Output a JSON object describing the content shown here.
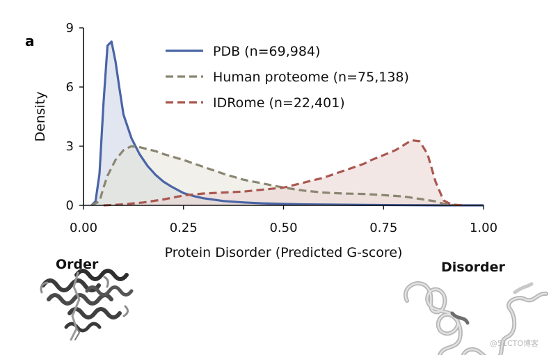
{
  "panel_label": "a",
  "structure_labels": {
    "order": "Order",
    "disorder": "Disorder"
  },
  "watermark": "@51CTO博客",
  "chart_data": {
    "type": "area",
    "title": "",
    "xlabel": "Protein Disorder (Predicted G-score)",
    "ylabel": "Density",
    "xlim": [
      0.0,
      1.0
    ],
    "ylim": [
      0,
      9
    ],
    "x_ticks": [
      0.0,
      0.25,
      0.5,
      0.75,
      1.0
    ],
    "x_tick_labels": [
      "0.00",
      "0.25",
      "0.50",
      "0.75",
      "1.00"
    ],
    "y_ticks": [
      0,
      3,
      6,
      9
    ],
    "y_tick_labels": [
      "0",
      "3",
      "6",
      "9"
    ],
    "grid": false,
    "legend_position": "top",
    "series": [
      {
        "name": "PDB (n=69,984)",
        "color": "#4a64a6",
        "fill": "#c9d2e3",
        "line_style": "solid",
        "x": [
          0.02,
          0.03,
          0.04,
          0.05,
          0.06,
          0.07,
          0.08,
          0.09,
          0.1,
          0.12,
          0.14,
          0.16,
          0.18,
          0.2,
          0.22,
          0.25,
          0.28,
          0.3,
          0.35,
          0.4,
          0.45,
          0.5,
          0.55,
          0.6,
          0.7,
          0.8,
          0.9,
          1.0
        ],
        "y": [
          0.0,
          0.2,
          1.6,
          5.2,
          8.1,
          8.3,
          7.3,
          5.9,
          4.6,
          3.4,
          2.6,
          2.0,
          1.55,
          1.2,
          0.95,
          0.62,
          0.45,
          0.36,
          0.22,
          0.15,
          0.1,
          0.07,
          0.05,
          0.04,
          0.02,
          0.01,
          0.0,
          0.0
        ]
      },
      {
        "name": "Human proteome (n=75,138)",
        "color": "#8a8671",
        "fill": "#e6e3d9",
        "line_style": "dashed",
        "x": [
          0.02,
          0.04,
          0.05,
          0.06,
          0.08,
          0.1,
          0.12,
          0.14,
          0.16,
          0.18,
          0.2,
          0.25,
          0.3,
          0.35,
          0.4,
          0.45,
          0.5,
          0.55,
          0.6,
          0.65,
          0.7,
          0.75,
          0.8,
          0.85,
          0.88,
          0.9,
          0.92,
          0.95
        ],
        "y": [
          0.0,
          0.2,
          0.9,
          1.5,
          2.3,
          2.8,
          3.0,
          2.95,
          2.85,
          2.75,
          2.6,
          2.3,
          1.95,
          1.6,
          1.3,
          1.1,
          0.9,
          0.75,
          0.65,
          0.6,
          0.58,
          0.52,
          0.45,
          0.3,
          0.2,
          0.08,
          0.02,
          0.0
        ]
      },
      {
        "name": "IDRome (n=22,401)",
        "color": "#a9574f",
        "fill": "#ead4d2",
        "line_style": "dashed",
        "x": [
          0.05,
          0.1,
          0.15,
          0.2,
          0.25,
          0.3,
          0.35,
          0.4,
          0.45,
          0.5,
          0.55,
          0.6,
          0.65,
          0.7,
          0.72,
          0.75,
          0.78,
          0.8,
          0.82,
          0.84,
          0.86,
          0.88,
          0.9,
          0.92,
          0.95
        ],
        "y": [
          0.0,
          0.05,
          0.15,
          0.3,
          0.5,
          0.6,
          0.65,
          0.7,
          0.8,
          0.9,
          1.15,
          1.4,
          1.75,
          2.1,
          2.3,
          2.55,
          2.8,
          3.05,
          3.3,
          3.25,
          2.6,
          1.2,
          0.25,
          0.04,
          0.0
        ]
      }
    ]
  }
}
